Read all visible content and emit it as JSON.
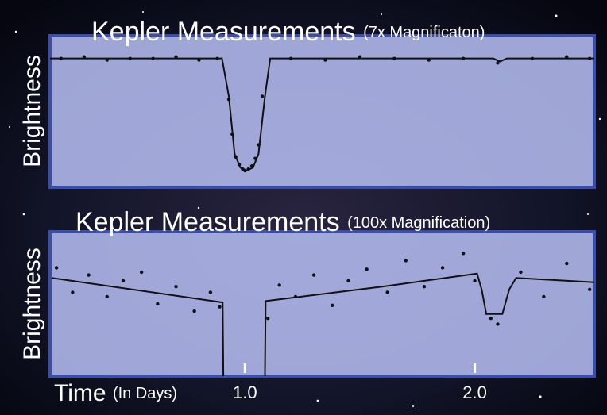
{
  "chart_data": [
    {
      "type": "line",
      "title": "Kepler Measurements",
      "subtitle": "(7x Magnificaton)",
      "y_label": "Brightness",
      "xlim": [
        0.152,
        2.52
      ],
      "ylim": [
        0,
        100
      ],
      "color": "#111111",
      "line": {
        "x": [
          0.152,
          0.9,
          0.93,
          0.955,
          0.98,
          1.007,
          1.035,
          1.059,
          1.087,
          1.11,
          2.08,
          2.11,
          2.14,
          2.52
        ],
        "values": [
          85,
          85,
          60,
          22,
          13,
          11,
          13,
          22,
          60,
          85,
          85,
          83,
          85,
          85
        ]
      },
      "points": {
        "x": [
          0.2,
          0.3,
          0.4,
          0.5,
          0.6,
          0.7,
          0.8,
          0.88,
          0.93,
          0.945,
          0.96,
          0.975,
          0.99,
          1.0,
          1.015,
          1.03,
          1.045,
          1.06,
          1.075,
          1.2,
          1.35,
          1.5,
          1.65,
          1.8,
          1.95,
          2.1,
          2.25,
          2.4,
          2.5
        ],
        "values": [
          85,
          86,
          84,
          85,
          85,
          86,
          84,
          85,
          58,
          35,
          20,
          15,
          12,
          11,
          12,
          14,
          19,
          28,
          60,
          85,
          84,
          86,
          85,
          84,
          85,
          82,
          85,
          86,
          85
        ]
      }
    },
    {
      "type": "line",
      "title": "Kepler Measurements",
      "subtitle": "(100x Magnification)",
      "y_label": "Brightness",
      "x_label": "Time",
      "x_label_note": "(In Days)",
      "xlim": [
        0.152,
        2.52
      ],
      "ylim": [
        0,
        100
      ],
      "color": "#111111",
      "xticks": [
        {
          "value": 1,
          "label": "1.0"
        },
        {
          "value": 2,
          "label": "2.0"
        }
      ],
      "line": {
        "x": [
          0.159,
          0.903,
          0.906,
          1.0,
          1.087,
          1.09,
          1.6,
          2.01,
          2.03,
          2.05,
          2.12,
          2.15,
          2.18,
          2.52
        ],
        "values": [
          68,
          51,
          0,
          null,
          0,
          52,
          62,
          71,
          60,
          43,
          43,
          60,
          68,
          65
        ]
      },
      "points": {
        "x": [
          0.18,
          0.25,
          0.32,
          0.4,
          0.47,
          0.55,
          0.62,
          0.7,
          0.78,
          0.85,
          0.89,
          1.1,
          1.15,
          1.22,
          1.3,
          1.38,
          1.45,
          1.53,
          1.62,
          1.7,
          1.78,
          1.86,
          1.95,
          2.0,
          2.07,
          2.1,
          2.2,
          2.3,
          2.4,
          2.5
        ],
        "values": [
          75,
          58,
          70,
          55,
          66,
          72,
          50,
          62,
          45,
          58,
          48,
          40,
          63,
          55,
          70,
          49,
          66,
          74,
          58,
          80,
          62,
          75,
          85,
          66,
          40,
          36,
          72,
          55,
          78,
          60
        ]
      }
    }
  ]
}
